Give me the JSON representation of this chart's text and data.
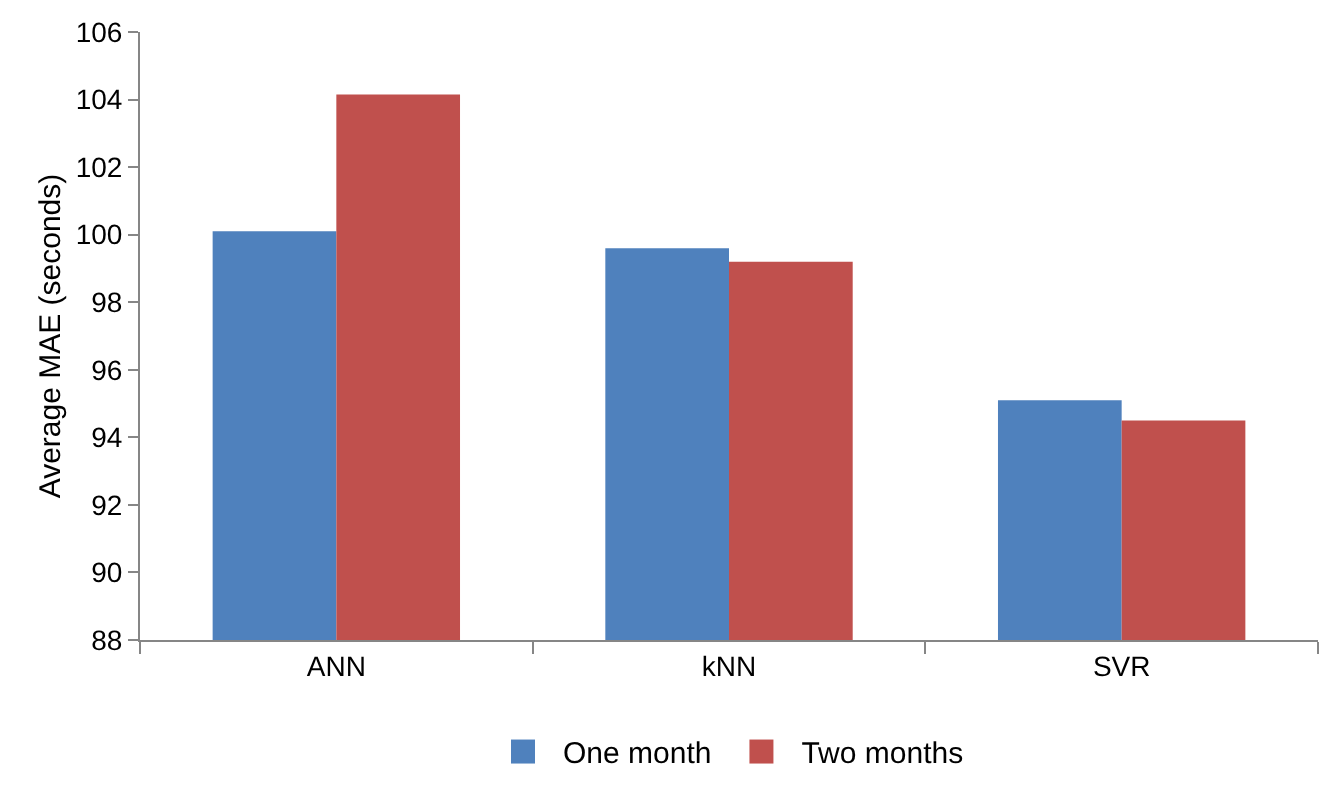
{
  "chart_data": {
    "type": "bar",
    "ylabel": "Average MAE (seconds)",
    "categories": [
      "ANN",
      "kNN",
      "SVR"
    ],
    "series": [
      {
        "name": "One month",
        "color": "#4f81bd",
        "values": [
          100.1,
          99.6,
          95.1
        ]
      },
      {
        "name": "Two months",
        "color": "#c0504d",
        "values": [
          104.15,
          99.2,
          94.5
        ]
      }
    ],
    "ylim": [
      88,
      106
    ],
    "yticks": [
      88,
      90,
      92,
      94,
      96,
      98,
      100,
      102,
      104,
      106
    ],
    "grid": false,
    "legend": "bottom"
  }
}
